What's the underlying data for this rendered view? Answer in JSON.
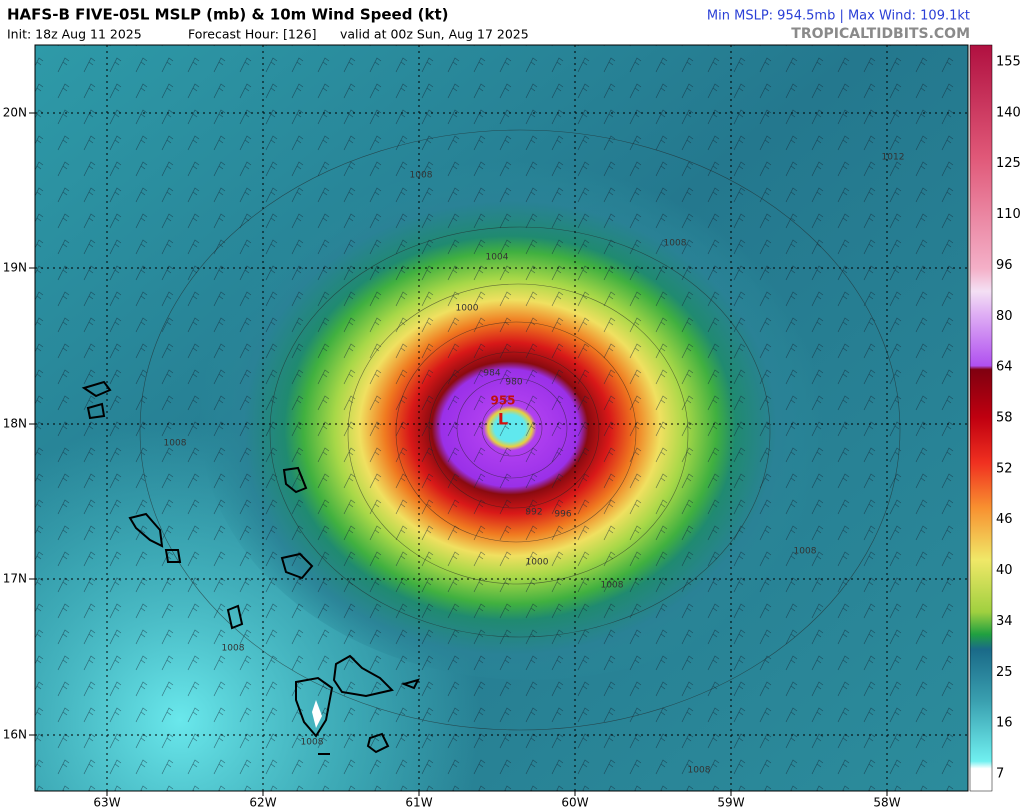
{
  "header": {
    "title": "HAFS-B FIVE-05L MSLP (mb) & 10m Wind Speed (kt)",
    "init": "Init: 18z Aug 11 2025",
    "forecast_hour": "Forecast Hour: [126]",
    "valid": "valid at 00z Sun, Aug 17 2025",
    "stats": "Min MSLP: 954.5mb | Max Wind: 109.1kt",
    "source": "TROPICALTIDBITS.COM"
  },
  "map": {
    "lat_labels": [
      "20N",
      "19N",
      "18N",
      "17N",
      "16N"
    ],
    "lon_labels": [
      "63W",
      "62W",
      "61W",
      "60W",
      "59W",
      "58W"
    ],
    "contour_labels": [
      "1008",
      "1004",
      "1000",
      "984",
      "980",
      "992",
      "996",
      "1000",
      "1008",
      "1008",
      "1008",
      "1008",
      "1008",
      "1008",
      "1012",
      "1008"
    ],
    "center_pressure": "955",
    "center_label": "L"
  },
  "colorbar": {
    "labels": [
      "155",
      "140",
      "125",
      "110",
      "96",
      "80",
      "64",
      "58",
      "52",
      "46",
      "40",
      "34",
      "25",
      "16",
      "7"
    ]
  }
}
